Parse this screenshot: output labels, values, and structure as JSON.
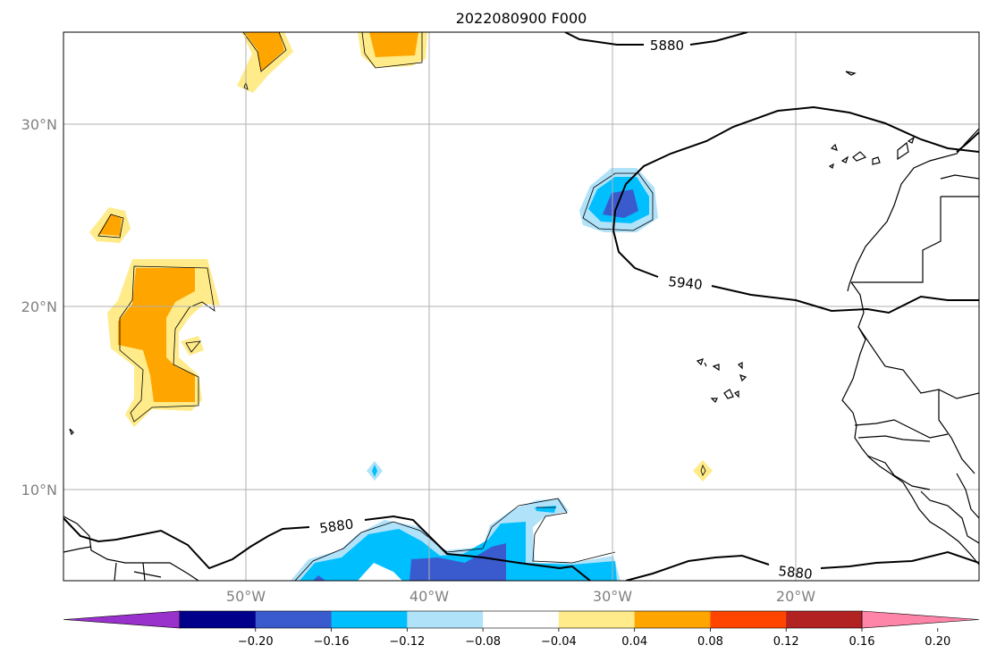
{
  "title": "2022080900 F000",
  "lat_labels": [
    "30°N",
    "20°N",
    "10°N"
  ],
  "lon_labels": [
    "50°W",
    "40°W",
    "30°W",
    "20°W"
  ],
  "contour_labels": {
    "c5880_top": "5880",
    "c5940": "5940",
    "c5880_bottom_left": "5880",
    "c5880_bottom_right": "5880"
  },
  "colorbar": {
    "ticks": [
      "−0.20",
      "−0.16",
      "−0.12",
      "−0.08",
      "−0.04",
      "0.04",
      "0.08",
      "0.12",
      "0.16",
      "0.20"
    ],
    "colors": [
      "#9932cc",
      "#00008b",
      "#3a5bcd",
      "#00bfff",
      "#b0e2fa",
      "#ffffff",
      "#ffeb8a",
      "#ffa500",
      "#ff4500",
      "#b22222",
      "#ff85a8"
    ]
  }
}
